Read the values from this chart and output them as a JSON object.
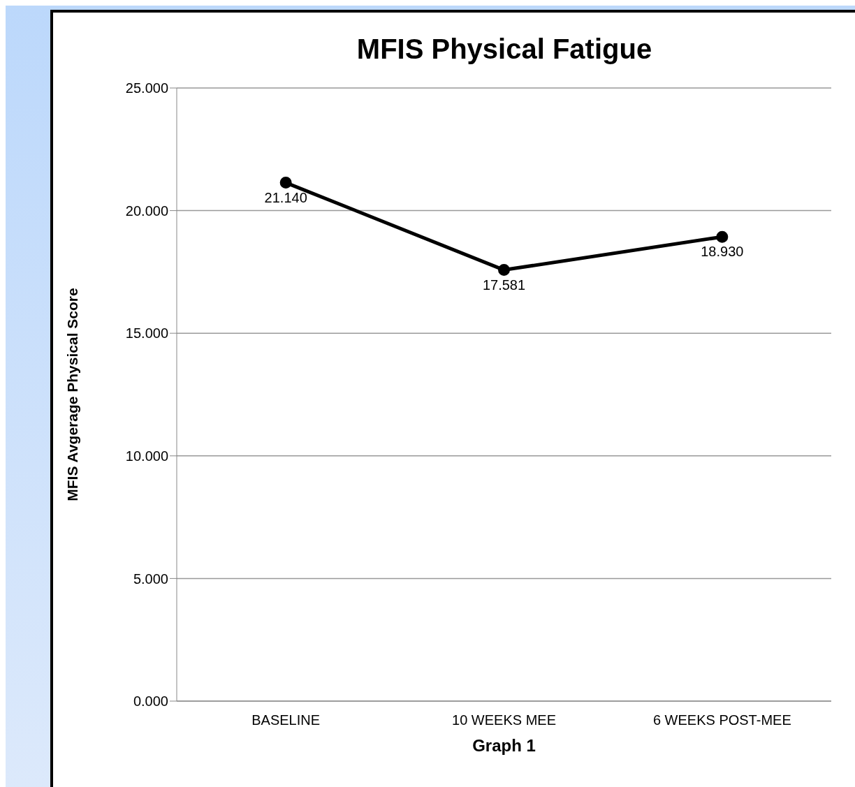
{
  "chart_data": {
    "type": "line",
    "title": "MFIS Physical Fatigue",
    "xlabel": "Graph 1",
    "ylabel": "MFIS Avgerage Physical Score",
    "categories": [
      "BASELINE",
      "10 WEEKS MEE",
      "6 WEEKS POST-MEE"
    ],
    "series": [
      {
        "color": "#000000",
        "values": [
          21.14,
          17.581,
          18.93
        ],
        "value_labels": [
          "21.140",
          "17.581",
          "18.930"
        ]
      }
    ],
    "ylim": [
      0,
      25
    ],
    "yticks": [
      {
        "value": 0,
        "label": "0.000"
      },
      {
        "value": 5,
        "label": "5.000"
      },
      {
        "value": 10,
        "label": "10.000"
      },
      {
        "value": 15,
        "label": "15.000"
      },
      {
        "value": 20,
        "label": "20.000"
      },
      {
        "value": 25,
        "label": "25.000"
      }
    ],
    "grid": "y",
    "legend": false,
    "marker": "circle",
    "line_style": "solid"
  }
}
